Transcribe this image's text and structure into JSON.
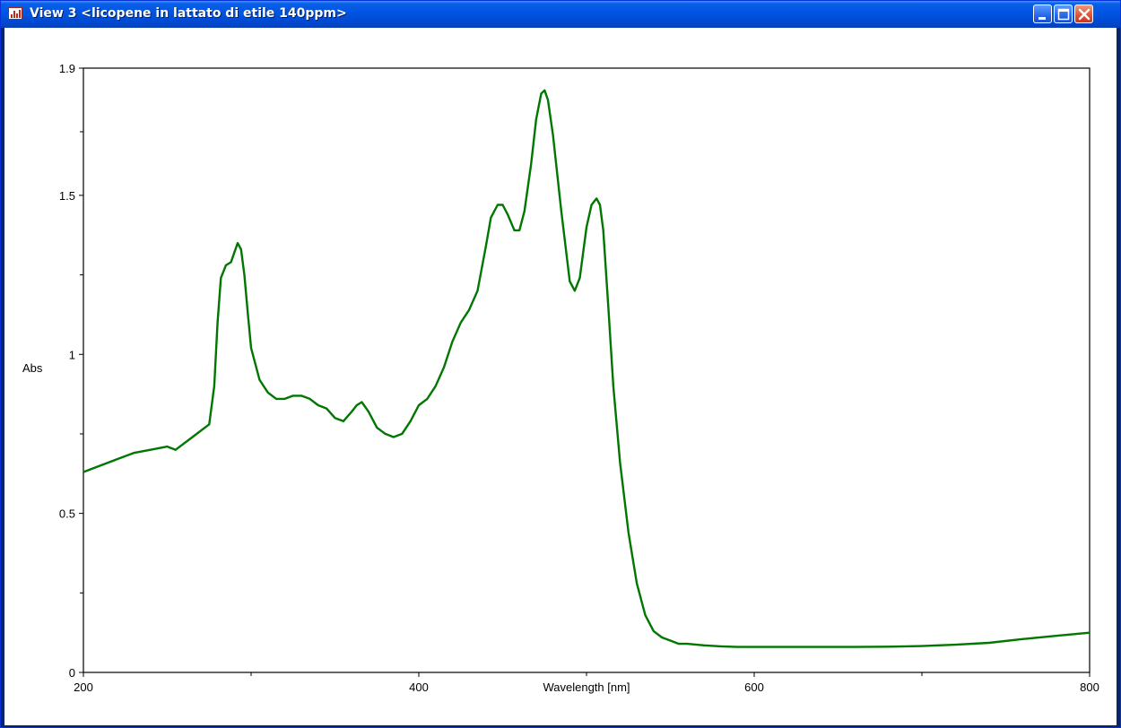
{
  "window": {
    "title": "View 3 <licopene in lattato di etile 140ppm>"
  },
  "icons": {
    "app": "spectrum-app-icon",
    "minimize": "minimize-icon",
    "maximize": "maximize-icon",
    "close": "close-icon"
  },
  "chart_data": {
    "type": "line",
    "xlabel": "Wavelength [nm]",
    "ylabel": "Abs",
    "xlim": [
      200,
      800
    ],
    "ylim": [
      0,
      1.9
    ],
    "x_ticks": [
      200,
      400,
      600,
      800
    ],
    "x_minor_ticks": [
      300,
      500,
      700
    ],
    "y_ticks": [
      0,
      0.5,
      1,
      1.5,
      1.9
    ],
    "y_tick_labels": [
      "0",
      "0.5",
      "1",
      "1.5",
      "1.9"
    ],
    "y_minor_ticks": [
      0.25,
      0.75,
      1.25,
      1.7
    ],
    "grid": false,
    "line_color": "#007700",
    "series": [
      {
        "x": [
          200,
          210,
          220,
          230,
          240,
          250,
          255,
          260,
          265,
          270,
          275,
          278,
          280,
          282,
          285,
          288,
          290,
          292,
          294,
          296,
          298,
          300,
          305,
          310,
          315,
          320,
          325,
          330,
          335,
          340,
          345,
          350,
          355,
          360,
          363,
          366,
          370,
          375,
          380,
          385,
          390,
          395,
          400,
          405,
          410,
          415,
          420,
          425,
          430,
          435,
          440,
          443,
          447,
          450,
          453,
          457,
          460,
          463,
          467,
          470,
          473,
          475,
          477,
          480,
          485,
          490,
          493,
          496,
          500,
          503,
          506,
          508,
          510,
          513,
          516,
          520,
          525,
          530,
          535,
          540,
          545,
          550,
          555,
          560,
          570,
          580,
          590,
          600,
          620,
          640,
          660,
          680,
          700,
          720,
          740,
          760,
          780,
          800
        ],
        "y": [
          0.63,
          0.65,
          0.67,
          0.69,
          0.7,
          0.71,
          0.7,
          0.72,
          0.74,
          0.76,
          0.78,
          0.9,
          1.1,
          1.24,
          1.28,
          1.29,
          1.32,
          1.35,
          1.33,
          1.25,
          1.13,
          1.02,
          0.92,
          0.88,
          0.86,
          0.86,
          0.87,
          0.87,
          0.86,
          0.84,
          0.83,
          0.8,
          0.79,
          0.82,
          0.84,
          0.85,
          0.82,
          0.77,
          0.75,
          0.74,
          0.75,
          0.79,
          0.84,
          0.86,
          0.9,
          0.96,
          1.04,
          1.1,
          1.14,
          1.2,
          1.34,
          1.43,
          1.47,
          1.47,
          1.44,
          1.39,
          1.39,
          1.45,
          1.6,
          1.74,
          1.82,
          1.83,
          1.8,
          1.69,
          1.45,
          1.23,
          1.2,
          1.24,
          1.4,
          1.47,
          1.49,
          1.47,
          1.39,
          1.15,
          0.9,
          0.66,
          0.44,
          0.28,
          0.18,
          0.13,
          0.11,
          0.1,
          0.09,
          0.09,
          0.085,
          0.082,
          0.08,
          0.08,
          0.08,
          0.08,
          0.08,
          0.081,
          0.083,
          0.087,
          0.093,
          0.105,
          0.115,
          0.125
        ]
      }
    ]
  }
}
